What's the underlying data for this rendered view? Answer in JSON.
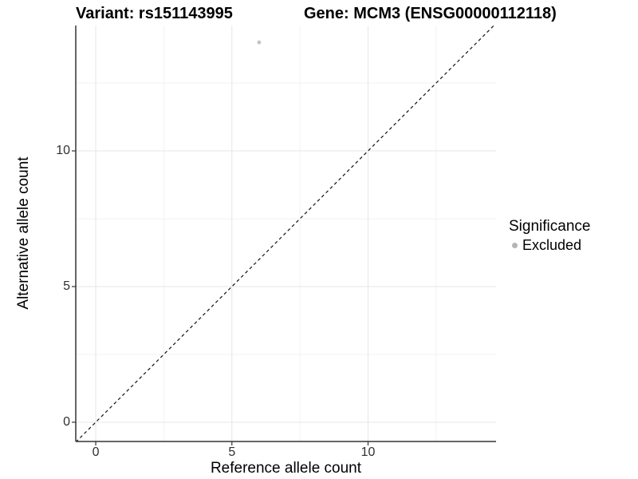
{
  "chart_data": {
    "type": "scatter",
    "titles": {
      "variant": "Variant: rs151143995",
      "gene": "Gene: MCM3 (ENSG00000112118)"
    },
    "xlabel": "Reference allele count",
    "ylabel": "Alternative allele count",
    "xlim": [
      -0.733,
      14.7
    ],
    "ylim": [
      -0.71,
      14.62
    ],
    "x_ticks": [
      0,
      5,
      10
    ],
    "y_ticks": [
      0,
      5,
      10
    ],
    "x_minor_gridlines": [
      2.5,
      7.5,
      12.5
    ],
    "y_minor_gridlines": [
      2.5,
      7.5,
      12.5
    ],
    "grid": true,
    "reference_line": {
      "type": "identity",
      "style": "dashed",
      "from": -0.733,
      "to": 14.7
    },
    "series": [
      {
        "name": "Excluded",
        "color": "#c2c2c2",
        "points": [
          {
            "x": 6,
            "y": 14
          }
        ]
      }
    ],
    "legend": {
      "position": "right",
      "title": "Significance",
      "items": [
        {
          "label": "Excluded",
          "color": "#b5b5b5"
        }
      ]
    },
    "colors": {
      "axis_line": "#333333",
      "grid_major": "#e6e6e6",
      "grid_minor": "#f2f2f2",
      "tick_text": "#303030",
      "dashed_line": "#111111",
      "background": "#ffffff"
    }
  }
}
